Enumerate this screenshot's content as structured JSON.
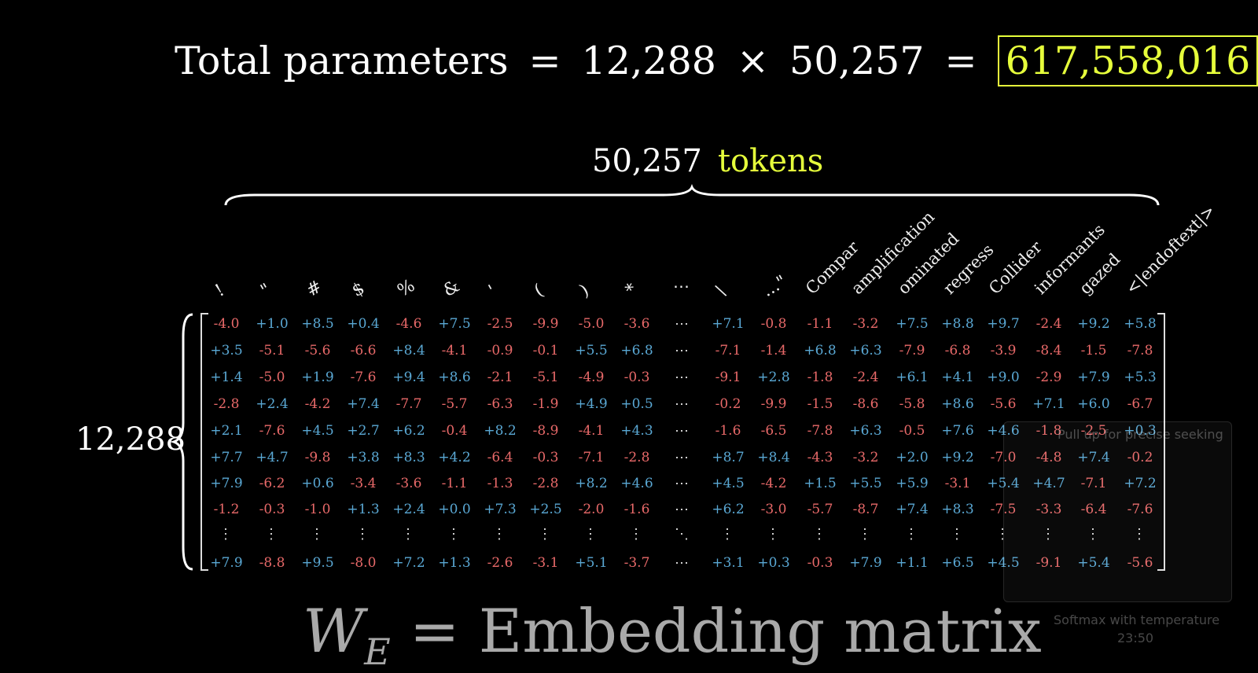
{
  "equation": {
    "label": "Total parameters",
    "equals": "=",
    "a": "12,288",
    "times": "×",
    "b": "50,257",
    "equals2": "=",
    "result": "617,558,016"
  },
  "columns_label": {
    "count": "50,257",
    "word": "tokens"
  },
  "rows_label": "12,288",
  "column_headers": [
    "!",
    "\"",
    "#",
    "$",
    "%",
    "&",
    "'",
    "(",
    ")",
    "*",
    "⋯",
    "\\",
    "...\"",
    "Compar",
    "amplification",
    "ominated",
    "regress",
    "Collider",
    "informants",
    "gazed",
    "<|endoftext|>"
  ],
  "matrix": [
    [
      "-4.0",
      "+1.0",
      "+8.5",
      "+0.4",
      "-4.6",
      "+7.5",
      "-2.5",
      "-9.9",
      "-5.0",
      "-3.6",
      "⋯",
      "+7.1",
      "-0.8",
      "-1.1",
      "-3.2",
      "+7.5",
      "+8.8",
      "+9.7",
      "-2.4",
      "+9.2",
      "+5.8"
    ],
    [
      "+3.5",
      "-5.1",
      "-5.6",
      "-6.6",
      "+8.4",
      "-4.1",
      "-0.9",
      "-0.1",
      "+5.5",
      "+6.8",
      "⋯",
      "-7.1",
      "-1.4",
      "+6.8",
      "+6.3",
      "-7.9",
      "-6.8",
      "-3.9",
      "-8.4",
      "-1.5",
      "-7.8"
    ],
    [
      "+1.4",
      "-5.0",
      "+1.9",
      "-7.6",
      "+9.4",
      "+8.6",
      "-2.1",
      "-5.1",
      "-4.9",
      "-0.3",
      "⋯",
      "-9.1",
      "+2.8",
      "-1.8",
      "-2.4",
      "+6.1",
      "+4.1",
      "+9.0",
      "-2.9",
      "+7.9",
      "+5.3"
    ],
    [
      "-2.8",
      "+2.4",
      "-4.2",
      "+7.4",
      "-7.7",
      "-5.7",
      "-6.3",
      "-1.9",
      "+4.9",
      "+0.5",
      "⋯",
      "-0.2",
      "-9.9",
      "-1.5",
      "-8.6",
      "-5.8",
      "+8.6",
      "-5.6",
      "+7.1",
      "+6.0",
      "-6.7"
    ],
    [
      "+2.1",
      "-7.6",
      "+4.5",
      "+2.7",
      "+6.2",
      "-0.4",
      "+8.2",
      "-8.9",
      "-4.1",
      "+4.3",
      "⋯",
      "-1.6",
      "-6.5",
      "-7.8",
      "+6.3",
      "-0.5",
      "+7.6",
      "+4.6",
      "-1.8",
      "-2.5",
      "+0.3"
    ],
    [
      "+7.7",
      "+4.7",
      "-9.8",
      "+3.8",
      "+8.3",
      "+4.2",
      "-6.4",
      "-0.3",
      "-7.1",
      "-2.8",
      "⋯",
      "+8.7",
      "+8.4",
      "-4.3",
      "-3.2",
      "+2.0",
      "+9.2",
      "-7.0",
      "-4.8",
      "+7.4",
      "-0.2"
    ],
    [
      "+7.9",
      "-6.2",
      "+0.6",
      "-3.4",
      "-3.6",
      "-1.1",
      "-1.3",
      "-2.8",
      "+8.2",
      "+4.6",
      "⋯",
      "+4.5",
      "-4.2",
      "+1.5",
      "+5.5",
      "+5.9",
      "-3.1",
      "+5.4",
      "+4.7",
      "-7.1",
      "+7.2"
    ],
    [
      "-1.2",
      "-0.3",
      "-1.0",
      "+1.3",
      "+2.4",
      "+0.0",
      "+7.3",
      "+2.5",
      "-2.0",
      "-1.6",
      "⋯",
      "+6.2",
      "-3.0",
      "-5.7",
      "-8.7",
      "+7.4",
      "+8.3",
      "-7.5",
      "-3.3",
      "-6.4",
      "-7.6"
    ],
    [
      "⋮",
      "⋮",
      "⋮",
      "⋮",
      "⋮",
      "⋮",
      "⋮",
      "⋮",
      "⋮",
      "⋮",
      "⋱",
      "⋮",
      "⋮",
      "⋮",
      "⋮",
      "⋮",
      "⋮",
      "⋮",
      "⋮",
      "⋮",
      "⋮"
    ],
    [
      "+7.9",
      "-8.8",
      "+9.5",
      "-8.0",
      "+7.2",
      "+1.3",
      "-2.6",
      "-3.1",
      "+5.1",
      "-3.7",
      "⋯",
      "+3.1",
      "+0.3",
      "-0.3",
      "+7.9",
      "+1.1",
      "+6.5",
      "+4.5",
      "-9.1",
      "+5.4",
      "-5.6"
    ]
  ],
  "title": {
    "w": "W",
    "sub": "E",
    "eq": "=",
    "text": "Embedding matrix"
  },
  "overlay": {
    "hint": "Pull up for precise seeking",
    "chapter": "Softmax with temperature",
    "time": "23:50"
  },
  "colors": {
    "positive": "#5aa8d4",
    "negative": "#e86969",
    "highlight": "#e6ff3b"
  }
}
